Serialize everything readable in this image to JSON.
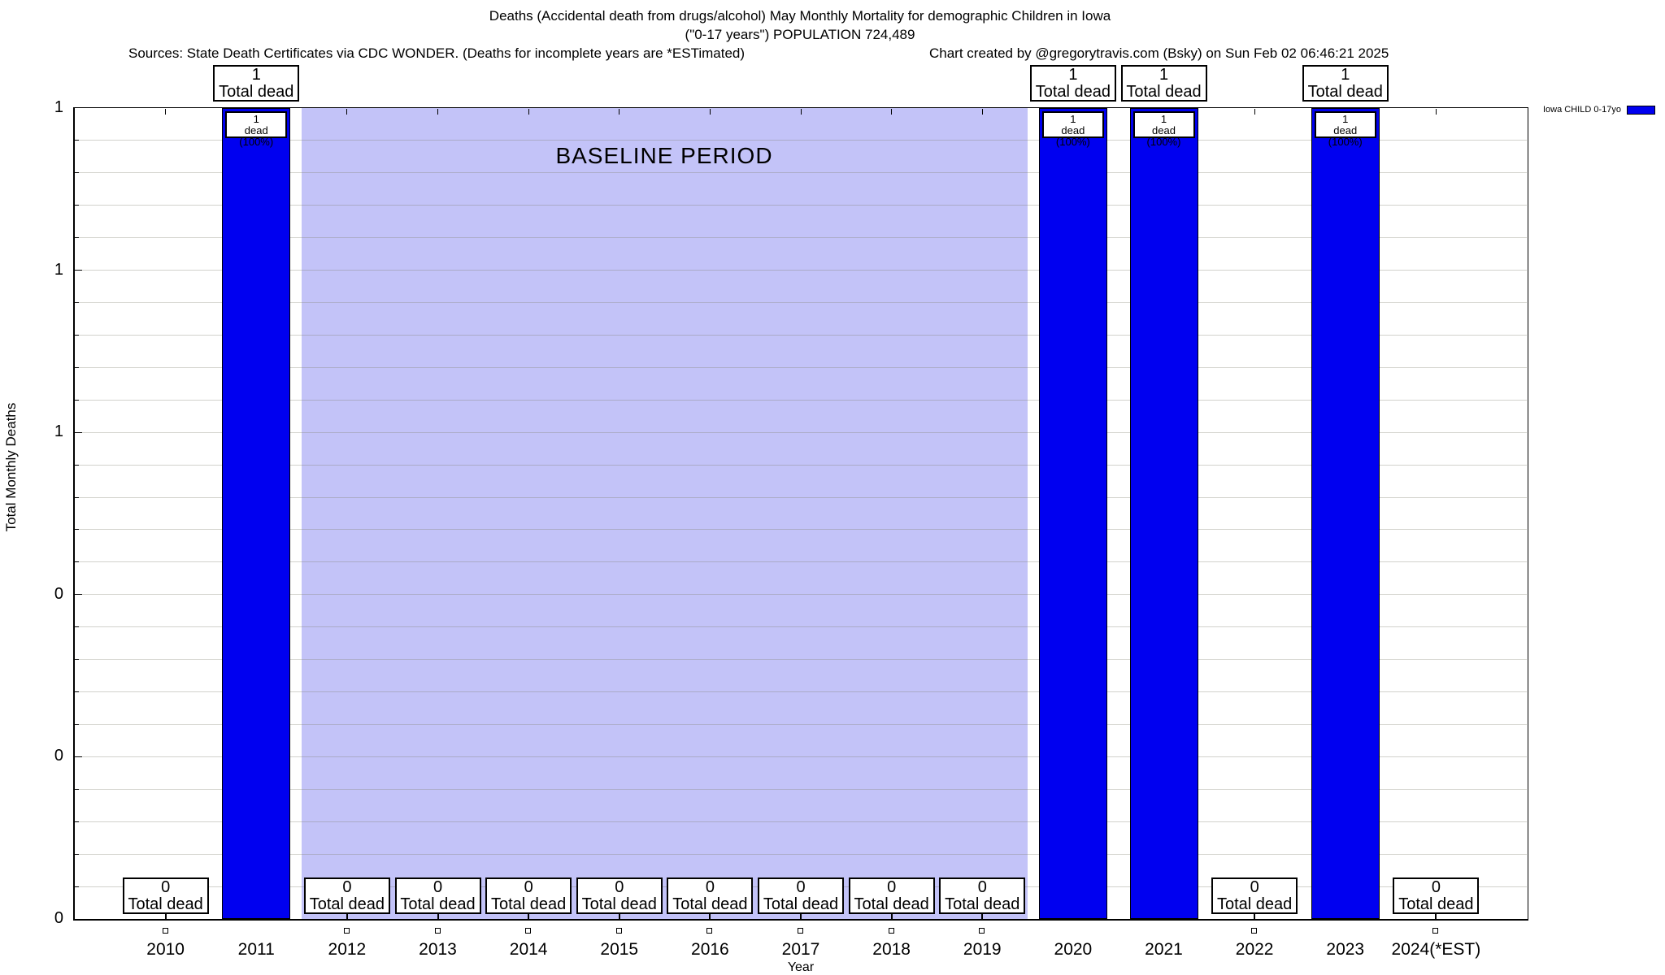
{
  "header": {
    "title_line1": "Deaths (Accidental death from drugs/alcohol) May Monthly Mortality for demographic Children in Iowa",
    "title_line2": "(\"0-17 years\") POPULATION 724,489",
    "sources": "Sources: State Death Certificates via CDC WONDER. (Deaths for incomplete years are *ESTimated)",
    "credit": "Chart created by @gregorytravis.com (Bsky) on Sun Feb 02 06:46:21 2025"
  },
  "legend": {
    "label": "Iowa CHILD 0-17yo",
    "swatch_color": "#0000F0"
  },
  "axes": {
    "y_title": "Total Monthly Deaths",
    "x_title": "Year",
    "y_tick_labels": [
      "1",
      "1",
      "1",
      "0",
      "0",
      "0"
    ]
  },
  "baseline": {
    "label": "BASELINE PERIOD",
    "from": "2012",
    "to": "2019",
    "fill": "#C3C3F8"
  },
  "annotations": {
    "top_box_count": "1",
    "top_box_label": "Total dead",
    "bottom_box_count": "0",
    "bottom_box_label": "Total dead",
    "inner_box_count": "1",
    "inner_box_label": "dead (100%)"
  },
  "chart_data": {
    "type": "bar",
    "categories": [
      "2010",
      "2011",
      "2012",
      "2013",
      "2014",
      "2015",
      "2016",
      "2017",
      "2018",
      "2019",
      "2020",
      "2021",
      "2022",
      "2023",
      "2024(*EST)"
    ],
    "series": [
      {
        "name": "Iowa CHILD 0-17yo",
        "color": "#0000F0",
        "values": [
          0,
          1,
          0,
          0,
          0,
          0,
          0,
          0,
          0,
          0,
          1,
          1,
          0,
          1,
          0
        ]
      }
    ],
    "title": "Deaths (Accidental death from drugs/alcohol) May Monthly Mortality for demographic Children in Iowa (\"0-17 years\") POPULATION 724,489",
    "xlabel": "Year",
    "ylabel": "Total Monthly Deaths",
    "ylim": [
      0,
      1
    ],
    "y_tick_values": [
      1.0,
      0.8,
      0.6,
      0.4,
      0.2,
      0.0
    ],
    "y_tick_display": [
      "1",
      "1",
      "1",
      "0",
      "0",
      "0"
    ],
    "grid": "horizontal-minor",
    "legend_position": "top-right",
    "baseline_band": {
      "from": "2012",
      "to": "2019",
      "label": "BASELINE PERIOD"
    },
    "bar_value_annotation": {
      "count": "1",
      "detail": "dead (100%)",
      "header": "Total dead"
    },
    "zero_value_annotation": {
      "count": "0",
      "header": "Total dead"
    }
  }
}
